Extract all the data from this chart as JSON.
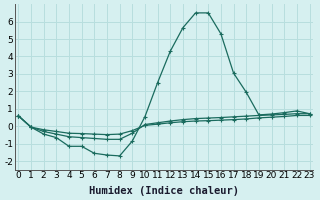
{
  "xlabel": "Humidex (Indice chaleur)",
  "bg_color": "#d6f0f0",
  "grid_color": "#b8dede",
  "line_color": "#1a6b5e",
  "x": [
    0,
    1,
    2,
    3,
    4,
    5,
    6,
    7,
    8,
    9,
    10,
    11,
    12,
    13,
    14,
    15,
    16,
    17,
    18,
    19,
    20,
    21,
    22,
    23
  ],
  "y_main": [
    0.6,
    -0.05,
    -0.45,
    -0.65,
    -1.15,
    -1.15,
    -1.55,
    -1.65,
    -1.7,
    -0.85,
    0.55,
    2.5,
    4.3,
    5.65,
    6.5,
    6.5,
    5.3,
    3.05,
    1.95,
    0.65,
    0.7,
    0.78,
    0.88,
    0.72
  ],
  "y_line2": [
    0.6,
    -0.05,
    -0.3,
    -0.45,
    -0.6,
    -0.65,
    -0.7,
    -0.75,
    -0.75,
    -0.4,
    0.1,
    0.2,
    0.3,
    0.38,
    0.44,
    0.47,
    0.5,
    0.54,
    0.58,
    0.62,
    0.65,
    0.68,
    0.72,
    0.72
  ],
  "y_line3": [
    0.6,
    -0.05,
    -0.2,
    -0.3,
    -0.4,
    -0.42,
    -0.45,
    -0.48,
    -0.45,
    -0.25,
    0.05,
    0.12,
    0.2,
    0.26,
    0.3,
    0.32,
    0.35,
    0.38,
    0.42,
    0.48,
    0.52,
    0.56,
    0.62,
    0.62
  ],
  "ylim": [
    -2.5,
    7.0
  ],
  "xlim": [
    -0.3,
    23.3
  ],
  "yticks": [
    -2,
    -1,
    0,
    1,
    2,
    3,
    4,
    5,
    6
  ],
  "xticks": [
    0,
    1,
    2,
    3,
    4,
    5,
    6,
    7,
    8,
    9,
    10,
    11,
    12,
    13,
    14,
    15,
    16,
    17,
    18,
    19,
    20,
    21,
    22,
    23
  ],
  "tick_fontsize": 6.5,
  "xlabel_fontsize": 7.5
}
